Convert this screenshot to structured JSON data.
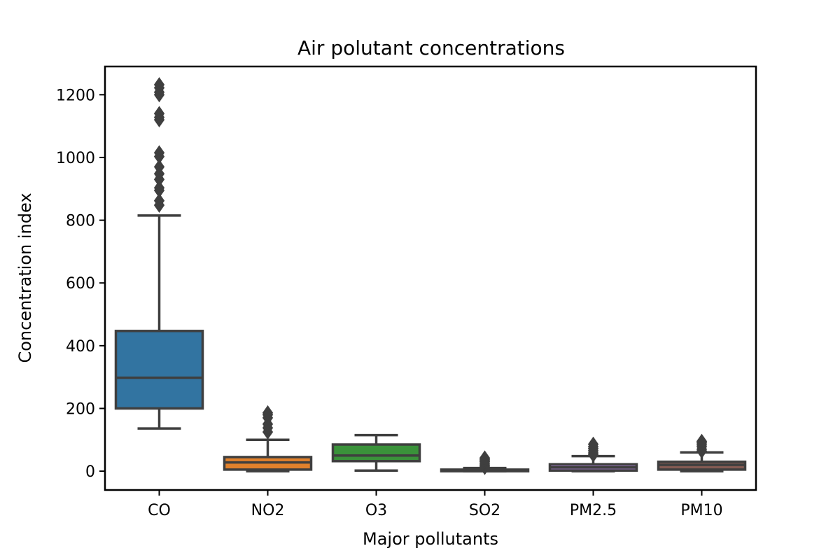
{
  "chart_data": {
    "type": "box",
    "title": "Air polutant concentrations",
    "xlabel": "Major pollutants",
    "ylabel": "Concentration index",
    "ylim": [
      -60,
      1290
    ],
    "yticks": [
      0,
      200,
      400,
      600,
      800,
      1000,
      1200
    ],
    "grid": false,
    "categories": [
      "CO",
      "NO2",
      "O3",
      "SO2",
      "PM2.5",
      "PM10"
    ],
    "boxes": [
      {
        "category": "CO",
        "color": "#3274a1",
        "whisker_low": 136,
        "q1": 200,
        "median": 298,
        "q3": 447,
        "whisker_high": 815,
        "outliers": [
          848,
          862,
          895,
          903,
          930,
          948,
          970,
          1003,
          1015,
          1120,
          1128,
          1140,
          1200,
          1208,
          1222,
          1232
        ]
      },
      {
        "category": "NO2",
        "color": "#e1812c",
        "whisker_low": 0,
        "q1": 5,
        "median": 28,
        "q3": 45,
        "whisker_high": 100,
        "outliers": [
          125,
          138,
          150,
          170,
          180,
          186
        ]
      },
      {
        "category": "O3",
        "color": "#3a923a",
        "whisker_low": 2,
        "q1": 32,
        "median": 50,
        "q3": 85,
        "whisker_high": 115,
        "outliers": []
      },
      {
        "category": "SO2",
        "color": "#c03d3e",
        "whisker_low": 0,
        "q1": 0,
        "median": 3,
        "q3": 5,
        "whisker_high": 10,
        "outliers": [
          12,
          16,
          20,
          25,
          30,
          34,
          38,
          42
        ]
      },
      {
        "category": "PM2.5",
        "color": "#9372b2",
        "whisker_low": 0,
        "q1": 2,
        "median": 12,
        "q3": 22,
        "whisker_high": 48,
        "outliers": [
          52,
          58,
          65,
          72,
          78,
          86
        ]
      },
      {
        "category": "PM10",
        "color": "#845b53",
        "whisker_low": 0,
        "q1": 5,
        "median": 20,
        "q3": 30,
        "whisker_high": 60,
        "outliers": [
          64,
          70,
          78,
          84,
          90,
          95
        ]
      }
    ]
  }
}
